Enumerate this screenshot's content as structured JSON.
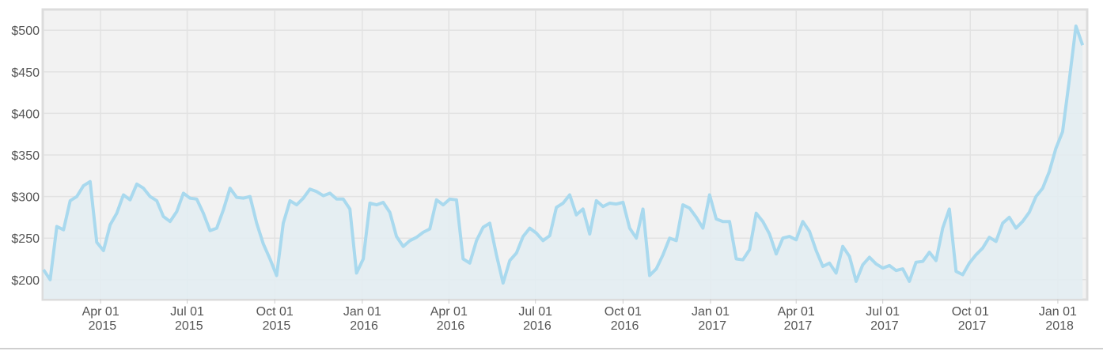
{
  "chart_data": {
    "type": "line",
    "color": "#a9d9ee",
    "area_color": "#e3edf2",
    "grid": true,
    "xlim": [
      "2015-01-31",
      "2018-01-31"
    ],
    "xticks": [
      {
        "value": "2015-04-01",
        "label": "Apr 01 2015"
      },
      {
        "value": "2015-07-01",
        "label": "Jul 01 2015"
      },
      {
        "value": "2015-10-01",
        "label": "Oct 01 2015"
      },
      {
        "value": "2016-01-01",
        "label": "Jan 01 2016"
      },
      {
        "value": "2016-04-01",
        "label": "Apr 01 2016"
      },
      {
        "value": "2016-07-01",
        "label": "Jul 01 2016"
      },
      {
        "value": "2016-10-01",
        "label": "Oct 01 2016"
      },
      {
        "value": "2017-01-01",
        "label": "Jan 01 2017"
      },
      {
        "value": "2017-04-01",
        "label": "Apr 01 2017"
      },
      {
        "value": "2017-07-01",
        "label": "Jul 01 2017"
      },
      {
        "value": "2017-10-01",
        "label": "Oct 01 2017"
      },
      {
        "value": "2018-01-01",
        "label": "Jan 01 2018"
      }
    ],
    "ylim": [
      177,
      524
    ],
    "yticks": [
      {
        "value": 200,
        "label": "$200"
      },
      {
        "value": 250,
        "label": "$250"
      },
      {
        "value": 300,
        "label": "$300"
      },
      {
        "value": 350,
        "label": "$350"
      },
      {
        "value": 400,
        "label": "$400"
      },
      {
        "value": 450,
        "label": "$450"
      },
      {
        "value": 500,
        "label": "$500"
      }
    ],
    "x": [
      "2015-01-31",
      "2015-02-07",
      "2015-02-14",
      "2015-02-21",
      "2015-02-28",
      "2015-03-07",
      "2015-03-14",
      "2015-03-21",
      "2015-03-28",
      "2015-04-04",
      "2015-04-11",
      "2015-04-18",
      "2015-04-25",
      "2015-05-02",
      "2015-05-09",
      "2015-05-16",
      "2015-05-23",
      "2015-05-30",
      "2015-06-06",
      "2015-06-13",
      "2015-06-20",
      "2015-06-27",
      "2015-07-04",
      "2015-07-11",
      "2015-07-18",
      "2015-07-25",
      "2015-08-01",
      "2015-08-08",
      "2015-08-15",
      "2015-08-22",
      "2015-08-29",
      "2015-09-05",
      "2015-09-12",
      "2015-09-19",
      "2015-09-26",
      "2015-10-03",
      "2015-10-10",
      "2015-10-17",
      "2015-10-24",
      "2015-10-31",
      "2015-11-07",
      "2015-11-14",
      "2015-11-21",
      "2015-11-28",
      "2015-12-05",
      "2015-12-12",
      "2015-12-19",
      "2015-12-26",
      "2016-01-02",
      "2016-01-09",
      "2016-01-16",
      "2016-01-23",
      "2016-01-30",
      "2016-02-06",
      "2016-02-13",
      "2016-02-20",
      "2016-02-27",
      "2016-03-05",
      "2016-03-12",
      "2016-03-19",
      "2016-03-26",
      "2016-04-02",
      "2016-04-09",
      "2016-04-16",
      "2016-04-23",
      "2016-04-30",
      "2016-05-07",
      "2016-05-14",
      "2016-05-21",
      "2016-05-28",
      "2016-06-04",
      "2016-06-11",
      "2016-06-18",
      "2016-06-25",
      "2016-07-02",
      "2016-07-09",
      "2016-07-16",
      "2016-07-23",
      "2016-07-30",
      "2016-08-06",
      "2016-08-13",
      "2016-08-20",
      "2016-08-27",
      "2016-09-03",
      "2016-09-10",
      "2016-09-17",
      "2016-09-24",
      "2016-10-01",
      "2016-10-08",
      "2016-10-15",
      "2016-10-22",
      "2016-10-29",
      "2016-11-05",
      "2016-11-12",
      "2016-11-19",
      "2016-11-26",
      "2016-12-03",
      "2016-12-10",
      "2016-12-17",
      "2016-12-24",
      "2016-12-31",
      "2017-01-07",
      "2017-01-14",
      "2017-01-21",
      "2017-01-28",
      "2017-02-04",
      "2017-02-11",
      "2017-02-18",
      "2017-02-25",
      "2017-03-04",
      "2017-03-11",
      "2017-03-18",
      "2017-03-25",
      "2017-04-01",
      "2017-04-08",
      "2017-04-15",
      "2017-04-22",
      "2017-04-29",
      "2017-05-06",
      "2017-05-13",
      "2017-05-20",
      "2017-05-27",
      "2017-06-03",
      "2017-06-10",
      "2017-06-17",
      "2017-06-24",
      "2017-07-01",
      "2017-07-08",
      "2017-07-15",
      "2017-07-22",
      "2017-07-29",
      "2017-08-05",
      "2017-08-12",
      "2017-08-19",
      "2017-08-26",
      "2017-09-02",
      "2017-09-09",
      "2017-09-16",
      "2017-09-23",
      "2017-09-30",
      "2017-10-07",
      "2017-10-14",
      "2017-10-21",
      "2017-10-28",
      "2017-11-04",
      "2017-11-11",
      "2017-11-18",
      "2017-11-25",
      "2017-12-02",
      "2017-12-09",
      "2017-12-16",
      "2017-12-23",
      "2017-12-30",
      "2018-01-06",
      "2018-01-13",
      "2018-01-20",
      "2018-01-27"
    ],
    "values": [
      212,
      200,
      264,
      260,
      295,
      300,
      313,
      318,
      245,
      235,
      266,
      280,
      302,
      296,
      315,
      310,
      300,
      295,
      276,
      270,
      282,
      304,
      298,
      297,
      280,
      259,
      262,
      284,
      310,
      299,
      298,
      300,
      268,
      243,
      225,
      205,
      268,
      295,
      290,
      298,
      309,
      306,
      301,
      304,
      297,
      297,
      285,
      208,
      225,
      292,
      290,
      293,
      281,
      252,
      240,
      247,
      251,
      257,
      261,
      296,
      290,
      297,
      296,
      225,
      220,
      247,
      263,
      268,
      230,
      196,
      223,
      232,
      252,
      262,
      256,
      247,
      253,
      287,
      292,
      302,
      278,
      285,
      255,
      295,
      288,
      292,
      291,
      293,
      262,
      250,
      285,
      205,
      213,
      230,
      250,
      247,
      290,
      286,
      275,
      262,
      302,
      273,
      270,
      270,
      225,
      224,
      236,
      280,
      270,
      255,
      231,
      250,
      252,
      248,
      270,
      258,
      235,
      216,
      220,
      208,
      240,
      228,
      198,
      218,
      227,
      219,
      214,
      217,
      211,
      213,
      198,
      221,
      222,
      233,
      223,
      262,
      285,
      210,
      206,
      220,
      230,
      238,
      251,
      246,
      268,
      275,
      262,
      270,
      281,
      300,
      310,
      330,
      358,
      378,
      440,
      505,
      482
    ]
  }
}
